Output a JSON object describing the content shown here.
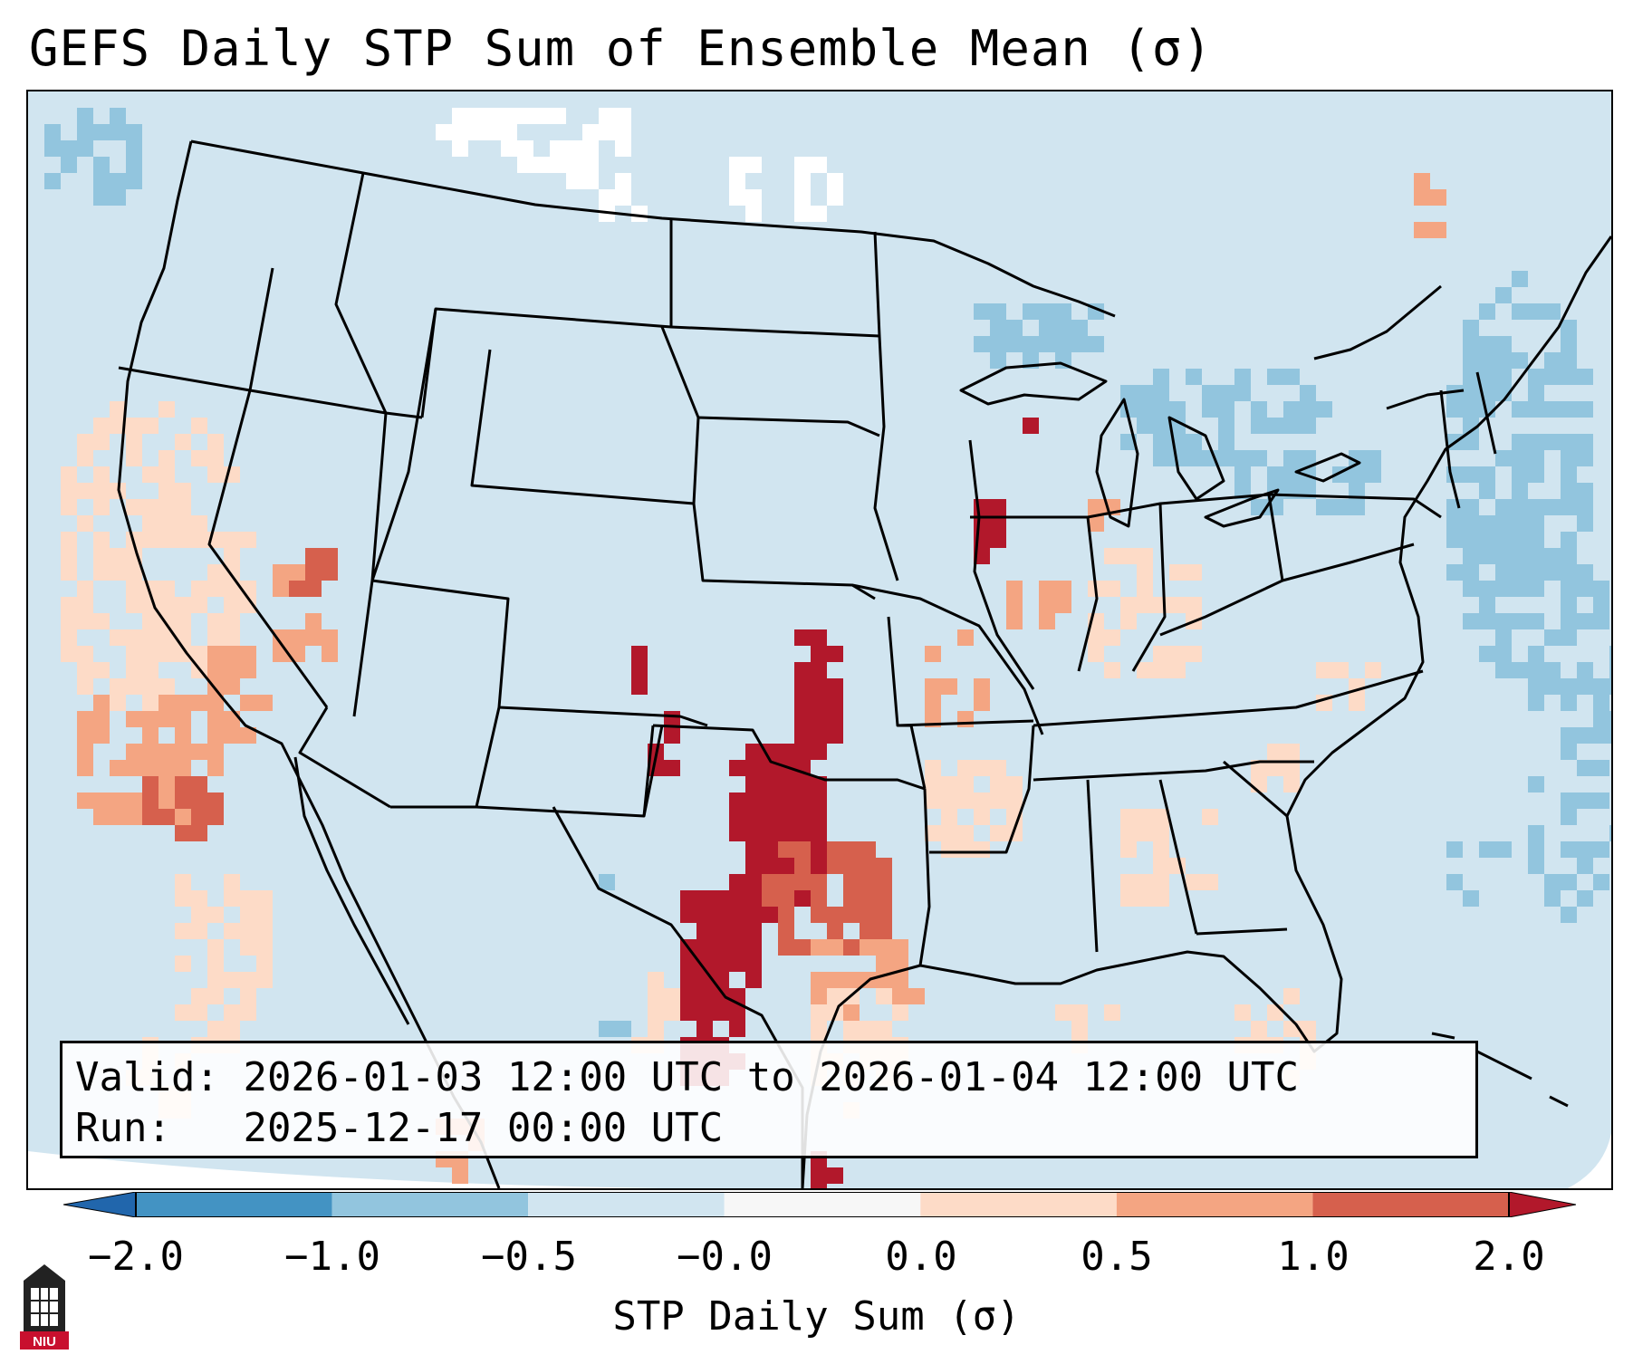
{
  "title": "GEFS Daily STP Sum of Ensemble Mean (σ)",
  "info": {
    "valid_label": "Valid:",
    "valid_value": "2026-01-03 12:00 UTC to 2026-01-04 12:00 UTC",
    "run_label": "Run:",
    "run_value": "2025-12-17 00:00 UTC"
  },
  "colorbar": {
    "label": "STP Daily Sum (σ)",
    "ticks": [
      "−2.0",
      "−1.0",
      "−0.5",
      "−0.0",
      "0.0",
      "0.5",
      "1.0",
      "2.0"
    ],
    "bins": [
      {
        "color": "#4393c3"
      },
      {
        "color": "#92c5de"
      },
      {
        "color": "#d1e5f0"
      },
      {
        "color": "#f7f7f7"
      },
      {
        "color": "#fddbc7"
      },
      {
        "color": "#f4a582"
      },
      {
        "color": "#d6604d"
      }
    ],
    "under_color": "#2166ac",
    "over_color": "#b2182b"
  },
  "logo": {
    "name": "niu-logo",
    "text": "NIU"
  },
  "map": {
    "background_color": "#d1e5f0",
    "highlight": "Strongest positive anomaly (>2σ) over Oklahoma and north/central Texas; moderate positive across Arkansas, Missouri, Illinois and the Pacific coast; slight negative over Great Lakes and western Atlantic"
  }
}
